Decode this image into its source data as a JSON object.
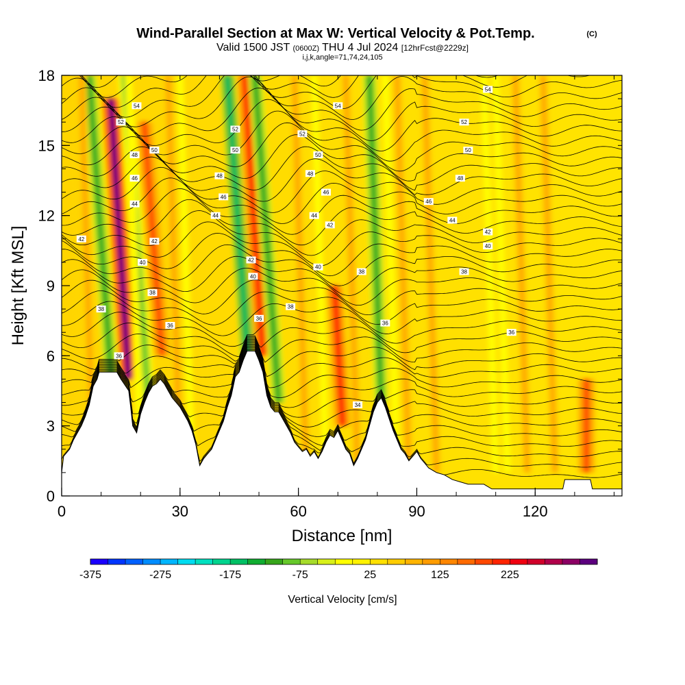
{
  "chart_data": {
    "type": "heatmap",
    "title": "Wind-Parallel Section at Max W: Vertical Velocity & Pot.Temp.",
    "title_mark": "(C)",
    "subtitle_main": "Valid 1500 JST",
    "subtitle_utc": "(0600Z)",
    "subtitle_date": "THU 4 Jul 2024",
    "subtitle_fcst": "[12hrFcst@2229z]",
    "subtitle_line2": "i,j,k,angle=71,74,24,105",
    "xlabel": "Distance [nm]",
    "ylabel": "Height [Kft MSL]",
    "xlim": [
      0,
      142
    ],
    "ylim": [
      0,
      18
    ],
    "xticks": [
      0,
      30,
      60,
      90,
      120
    ],
    "yticks": [
      0,
      3,
      6,
      9,
      12,
      15,
      18
    ],
    "colorbar": {
      "label": "Vertical Velocity [cm/s]",
      "tick_labels": [
        "-375",
        "-275",
        "-175",
        "-75",
        "25",
        "125",
        "225"
      ],
      "colors": [
        "#1a00ff",
        "#0035ff",
        "#0060ff",
        "#008cff",
        "#00b6ff",
        "#00dcf0",
        "#00e0bf",
        "#00d48e",
        "#00c064",
        "#10ad31",
        "#36a51a",
        "#66c82a",
        "#a6db2a",
        "#d8f01a",
        "#ffff00",
        "#fff200",
        "#ffe000",
        "#ffcc00",
        "#ffb400",
        "#ff9c00",
        "#ff8600",
        "#ff6a00",
        "#ff4800",
        "#ff2400",
        "#f00010",
        "#d0002a",
        "#b0004a",
        "#8c0064",
        "#5c007e"
      ]
    },
    "updraft_columns": [
      {
        "name": "",
        "x": 16.5,
        "w_peak_cms": 300,
        "z_range": [
          5,
          17
        ]
      },
      {
        "name": "",
        "x": 25,
        "w_peak_cms": 150,
        "z_range": [
          6,
          16
        ]
      },
      {
        "name": "",
        "x": 50.5,
        "w_peak_cms": 180,
        "z_range": [
          6,
          18
        ]
      },
      {
        "name": "",
        "x": 71,
        "w_peak_cms": 175,
        "z_range": [
          3,
          9
        ]
      },
      {
        "name": "",
        "x": 133,
        "w_peak_cms": 150,
        "z_range": [
          1,
          5
        ]
      }
    ],
    "downdraft_columns": [
      {
        "x": 13,
        "w_min_cms": -150
      },
      {
        "x": 22,
        "w_min_cms": -125
      },
      {
        "x": 48,
        "w_min_cms": -200
      },
      {
        "x": 55,
        "w_min_cms": -150
      },
      {
        "x": 81,
        "w_min_cms": -150
      }
    ],
    "theta_contour_labels": [
      {
        "x": 5,
        "y": 11.0,
        "text": "42"
      },
      {
        "x": 10,
        "y": 8.0,
        "text": "38"
      },
      {
        "x": 14.5,
        "y": 6.0,
        "text": "36"
      },
      {
        "x": 15,
        "y": 16.0,
        "text": "52"
      },
      {
        "x": 19,
        "y": 16.7,
        "text": "54"
      },
      {
        "x": 18.5,
        "y": 14.6,
        "text": "48"
      },
      {
        "x": 18.5,
        "y": 13.6,
        "text": "46"
      },
      {
        "x": 18.5,
        "y": 12.5,
        "text": "44"
      },
      {
        "x": 20.5,
        "y": 10.0,
        "text": "40"
      },
      {
        "x": 23,
        "y": 8.7,
        "text": "38"
      },
      {
        "x": 23.5,
        "y": 14.8,
        "text": "50"
      },
      {
        "x": 23.5,
        "y": 10.9,
        "text": "42"
      },
      {
        "x": 27.5,
        "y": 7.3,
        "text": "36"
      },
      {
        "x": 44,
        "y": 15.7,
        "text": "52"
      },
      {
        "x": 44,
        "y": 14.8,
        "text": "50"
      },
      {
        "x": 40,
        "y": 13.7,
        "text": "48"
      },
      {
        "x": 41,
        "y": 12.8,
        "text": "46"
      },
      {
        "x": 39,
        "y": 12.0,
        "text": "44"
      },
      {
        "x": 48,
        "y": 10.1,
        "text": "42"
      },
      {
        "x": 48.5,
        "y": 9.4,
        "text": "40"
      },
      {
        "x": 50,
        "y": 7.6,
        "text": "36"
      },
      {
        "x": 58,
        "y": 8.1,
        "text": "38"
      },
      {
        "x": 70,
        "y": 16.7,
        "text": "54"
      },
      {
        "x": 61,
        "y": 15.5,
        "text": "52"
      },
      {
        "x": 65,
        "y": 14.6,
        "text": "50"
      },
      {
        "x": 63,
        "y": 13.8,
        "text": "48"
      },
      {
        "x": 67,
        "y": 13.0,
        "text": "46"
      },
      {
        "x": 64,
        "y": 12.0,
        "text": "44"
      },
      {
        "x": 68,
        "y": 11.6,
        "text": "42"
      },
      {
        "x": 65,
        "y": 9.8,
        "text": "40"
      },
      {
        "x": 76,
        "y": 9.6,
        "text": "38"
      },
      {
        "x": 82,
        "y": 7.4,
        "text": "36"
      },
      {
        "x": 75,
        "y": 3.9,
        "text": "34"
      },
      {
        "x": 108,
        "y": 17.4,
        "text": "54"
      },
      {
        "x": 102,
        "y": 16.0,
        "text": "52"
      },
      {
        "x": 103,
        "y": 14.8,
        "text": "50"
      },
      {
        "x": 101,
        "y": 13.6,
        "text": "48"
      },
      {
        "x": 93,
        "y": 12.6,
        "text": "46"
      },
      {
        "x": 99,
        "y": 11.8,
        "text": "44"
      },
      {
        "x": 108,
        "y": 11.3,
        "text": "42"
      },
      {
        "x": 108,
        "y": 10.7,
        "text": "40"
      },
      {
        "x": 102,
        "y": 9.6,
        "text": "38"
      },
      {
        "x": 114,
        "y": 7.0,
        "text": "36"
      }
    ],
    "terrain_profile": [
      [
        0,
        1.0
      ],
      [
        0.5,
        1.7
      ],
      [
        2,
        2.0
      ],
      [
        3,
        2.4
      ],
      [
        4,
        2.7
      ],
      [
        5,
        3.0
      ],
      [
        6,
        3.4
      ],
      [
        7,
        3.9
      ],
      [
        8,
        4.7
      ],
      [
        9,
        5.0
      ],
      [
        9.5,
        5.3
      ],
      [
        14,
        5.3
      ],
      [
        15,
        5.0
      ],
      [
        17,
        4.5
      ],
      [
        17.5,
        3.8
      ],
      [
        18,
        3.0
      ],
      [
        19,
        2.7
      ],
      [
        20,
        3.5
      ],
      [
        21,
        4.0
      ],
      [
        22,
        4.4
      ],
      [
        23,
        4.7
      ],
      [
        24,
        4.8
      ],
      [
        25,
        5.0
      ],
      [
        26,
        4.8
      ],
      [
        27,
        4.5
      ],
      [
        28,
        4.2
      ],
      [
        29,
        4.0
      ],
      [
        30,
        3.8
      ],
      [
        31,
        3.5
      ],
      [
        32,
        3.2
      ],
      [
        33,
        2.8
      ],
      [
        34,
        2.2
      ],
      [
        35,
        1.3
      ],
      [
        36,
        1.6
      ],
      [
        37,
        1.8
      ],
      [
        38,
        2.0
      ],
      [
        39,
        2.4
      ],
      [
        40,
        2.8
      ],
      [
        41,
        3.2
      ],
      [
        42,
        3.8
      ],
      [
        43,
        4.3
      ],
      [
        44,
        5.1
      ],
      [
        45,
        5.3
      ],
      [
        46,
        5.8
      ],
      [
        47,
        6.2
      ],
      [
        49,
        6.2
      ],
      [
        50,
        5.8
      ],
      [
        51,
        5.3
      ],
      [
        52,
        4.3
      ],
      [
        53,
        3.8
      ],
      [
        54,
        3.6
      ],
      [
        55,
        3.6
      ],
      [
        56,
        3.3
      ],
      [
        57,
        3.0
      ],
      [
        58,
        2.7
      ],
      [
        59,
        2.3
      ],
      [
        60,
        2.1
      ],
      [
        61,
        1.9
      ],
      [
        62,
        2.0
      ],
      [
        63,
        1.7
      ],
      [
        64,
        1.9
      ],
      [
        65,
        1.6
      ],
      [
        66,
        1.9
      ],
      [
        67,
        2.3
      ],
      [
        68,
        2.6
      ],
      [
        69,
        2.5
      ],
      [
        70,
        2.8
      ],
      [
        71,
        2.4
      ],
      [
        72,
        2.0
      ],
      [
        73,
        1.8
      ],
      [
        74,
        1.3
      ],
      [
        75,
        1.6
      ],
      [
        76,
        2.0
      ],
      [
        77,
        2.4
      ],
      [
        78,
        3.0
      ],
      [
        79,
        3.6
      ],
      [
        80,
        4.0
      ],
      [
        81,
        4.2
      ],
      [
        82,
        3.8
      ],
      [
        83,
        3.3
      ],
      [
        84,
        2.8
      ],
      [
        85,
        2.4
      ],
      [
        86,
        2.0
      ],
      [
        87,
        1.8
      ],
      [
        88,
        1.5
      ],
      [
        89,
        1.7
      ],
      [
        90,
        1.9
      ],
      [
        91,
        1.6
      ],
      [
        92,
        1.4
      ],
      [
        93,
        1.2
      ],
      [
        95,
        1.0
      ],
      [
        97,
        0.9
      ],
      [
        99,
        0.7
      ],
      [
        101,
        0.6
      ],
      [
        103,
        0.5
      ],
      [
        107,
        0.5
      ],
      [
        109,
        0.3
      ],
      [
        127,
        0.3
      ],
      [
        127.5,
        0.7
      ],
      [
        134,
        0.7
      ],
      [
        134.5,
        0.3
      ],
      [
        139,
        0.3
      ],
      [
        142,
        0.3
      ]
    ]
  }
}
